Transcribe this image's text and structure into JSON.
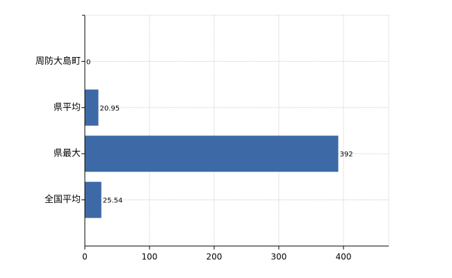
{
  "chart_data": {
    "type": "bar",
    "orientation": "horizontal",
    "categories": [
      "周防大島町",
      "県平均",
      "県最大",
      "全国平均"
    ],
    "values": [
      0,
      20.95,
      392,
      25.54
    ],
    "color": "#3d6aa6",
    "xlim": [
      0,
      470
    ],
    "xticks": [
      0,
      100,
      200,
      300,
      400
    ],
    "grid": true
  }
}
